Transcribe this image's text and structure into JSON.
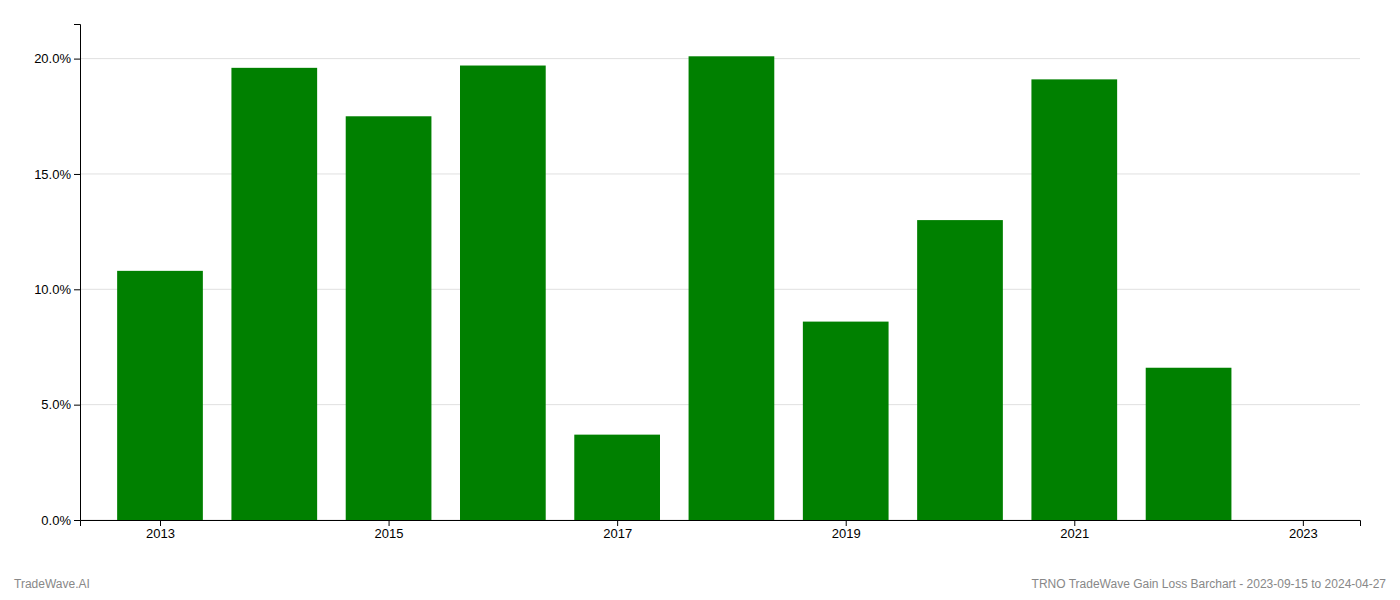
{
  "chart_data": {
    "type": "bar",
    "x": [
      2013,
      2014,
      2015,
      2016,
      2017,
      2018,
      2019,
      2020,
      2021,
      2022
    ],
    "values": [
      0.108,
      0.196,
      0.175,
      0.197,
      0.037,
      0.201,
      0.086,
      0.13,
      0.191,
      0.066
    ],
    "color": "#008000",
    "xlim": [
      2012.3,
      2023.5
    ],
    "xticks": [
      2013,
      2015,
      2017,
      2019,
      2021,
      2023
    ],
    "ylim": [
      0,
      0.215
    ],
    "yticks": [
      {
        "value": 0.0,
        "label": "0.0%"
      },
      {
        "value": 0.05,
        "label": "5.0%"
      },
      {
        "value": 0.1,
        "label": "10.0%"
      },
      {
        "value": 0.15,
        "label": "15.0%"
      },
      {
        "value": 0.2,
        "label": "20.0%"
      }
    ],
    "grid": true,
    "annotations": [
      "TradeWave.AI",
      "TRNO TradeWave Gain Loss Barchart - 2023-09-15 to 2024-04-27"
    ]
  }
}
